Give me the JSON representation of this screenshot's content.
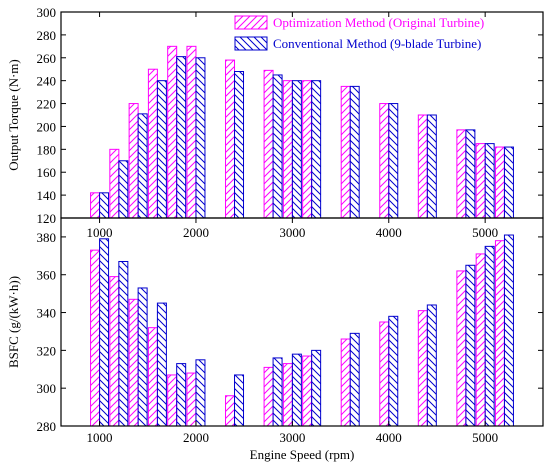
{
  "chart_data": [
    {
      "type": "bar",
      "panel": "top",
      "ylabel": "Output Torque (N·m)",
      "ylim": [
        120,
        300
      ],
      "yticks": [
        120,
        140,
        160,
        180,
        200,
        220,
        240,
        260,
        280,
        300
      ],
      "x": [
        1000,
        1200,
        1400,
        1600,
        1800,
        2000,
        2400,
        2800,
        3000,
        3200,
        3600,
        4000,
        4400,
        4800,
        5000,
        5200
      ],
      "series": [
        {
          "name": "Optimization Method (Original Turbine)",
          "values": [
            142,
            180,
            220,
            250,
            270,
            270,
            258,
            249,
            240,
            240,
            235,
            220,
            210,
            197,
            185,
            182
          ]
        },
        {
          "name": "Conventional Method (9-blade Turbine)",
          "values": [
            142,
            170,
            211,
            240,
            261,
            260,
            248,
            245,
            240,
            240,
            235,
            220,
            210,
            197,
            185,
            182
          ]
        }
      ],
      "legend": "top-right"
    },
    {
      "type": "bar",
      "panel": "bottom",
      "xlabel": "Engine Speed (rpm)",
      "ylabel": "BSFC (g/(kW·h))",
      "ylim": [
        280,
        390
      ],
      "yticks": [
        280,
        300,
        320,
        340,
        360,
        380
      ],
      "xlim": [
        600,
        5600
      ],
      "xticks": [
        1000,
        2000,
        3000,
        4000,
        5000
      ],
      "x": [
        1000,
        1200,
        1400,
        1600,
        1800,
        2000,
        2400,
        2800,
        3000,
        3200,
        3600,
        4000,
        4400,
        4800,
        5000,
        5200
      ],
      "series": [
        {
          "name": "Optimization Method (Original Turbine)",
          "values": [
            373,
            359,
            347,
            332,
            307,
            308,
            296,
            311,
            313,
            317,
            326,
            335,
            341,
            362,
            371,
            378
          ]
        },
        {
          "name": "Conventional Method (9-blade Turbine)",
          "values": [
            379,
            367,
            353,
            345,
            313,
            315,
            307,
            316,
            318,
            320,
            329,
            338,
            344,
            365,
            375,
            381
          ]
        }
      ]
    }
  ],
  "colors": {
    "optimization": "#ff00ff",
    "conventional": "#0000cd",
    "axis": "#000000"
  }
}
